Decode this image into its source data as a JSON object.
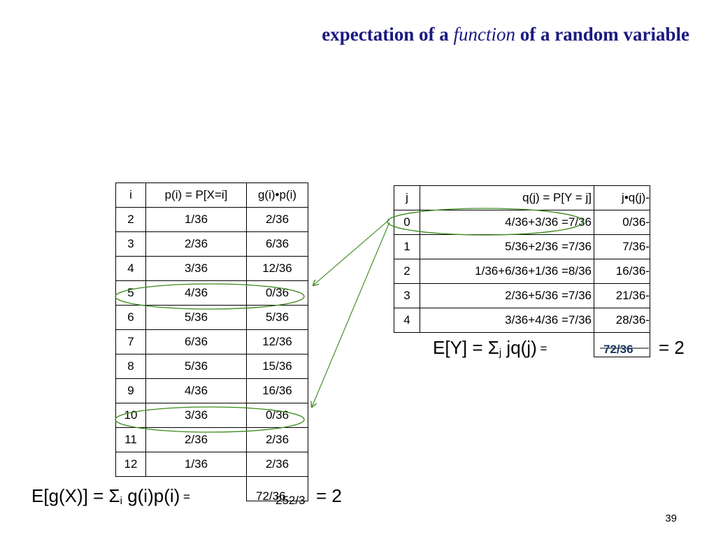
{
  "title": {
    "prefix": "expectation of a ",
    "italic": "function",
    "suffix": " of a random variable"
  },
  "table_left": {
    "headers": [
      "i",
      "p(i) = P[X=i]",
      "g(i)•p(i)"
    ],
    "rows": [
      [
        "2",
        "1/36",
        "2/36"
      ],
      [
        "3",
        "2/36",
        "6/36"
      ],
      [
        "4",
        "3/36",
        "12/36"
      ],
      [
        "5",
        "4/36",
        "0/36"
      ],
      [
        "6",
        "5/36",
        "5/36"
      ],
      [
        "7",
        "6/36",
        "12/36"
      ],
      [
        "8",
        "5/36",
        "15/36"
      ],
      [
        "9",
        "4/36",
        "16/36"
      ],
      [
        "10",
        "3/36",
        "0/36"
      ],
      [
        "11",
        "2/36",
        "2/36"
      ],
      [
        "12",
        "1/36",
        "2/36"
      ]
    ]
  },
  "table_right": {
    "headers": [
      "j",
      "q(j) = P[Y = j]",
      "j•q(j)-"
    ],
    "rows": [
      [
        "0",
        "4/36+3/36 =7/36",
        "0/36-"
      ],
      [
        "1",
        "5/36+2/36 =7/36",
        "7/36-"
      ],
      [
        "2",
        "1/36+6/36+1/36 =8/36",
        "16/36-"
      ],
      [
        "3",
        "2/36+5/36 =7/36",
        "21/36-"
      ],
      [
        "4",
        "3/36+4/36 =7/36",
        "28/36-"
      ]
    ]
  },
  "equations": {
    "ey_lhs": "E[Y] = Σ",
    "ey_sub": "j",
    "ey_mid": " jq(j)",
    "ey_eq": " = ",
    "ey_total": "72/36",
    "ey_rhs": "= 2",
    "egx_lhs": "E[g(X)] = Σ",
    "egx_sub": "i",
    "egx_mid": " g(i)p(i)",
    "egx_eq": " = ",
    "egx_total_a": "72/36",
    "egx_total_b": "252/3",
    "egx_rhs": "= 2"
  },
  "page_number": "39",
  "colors": {
    "title": "#1a1a80",
    "annotation": "#3a8a1a"
  }
}
